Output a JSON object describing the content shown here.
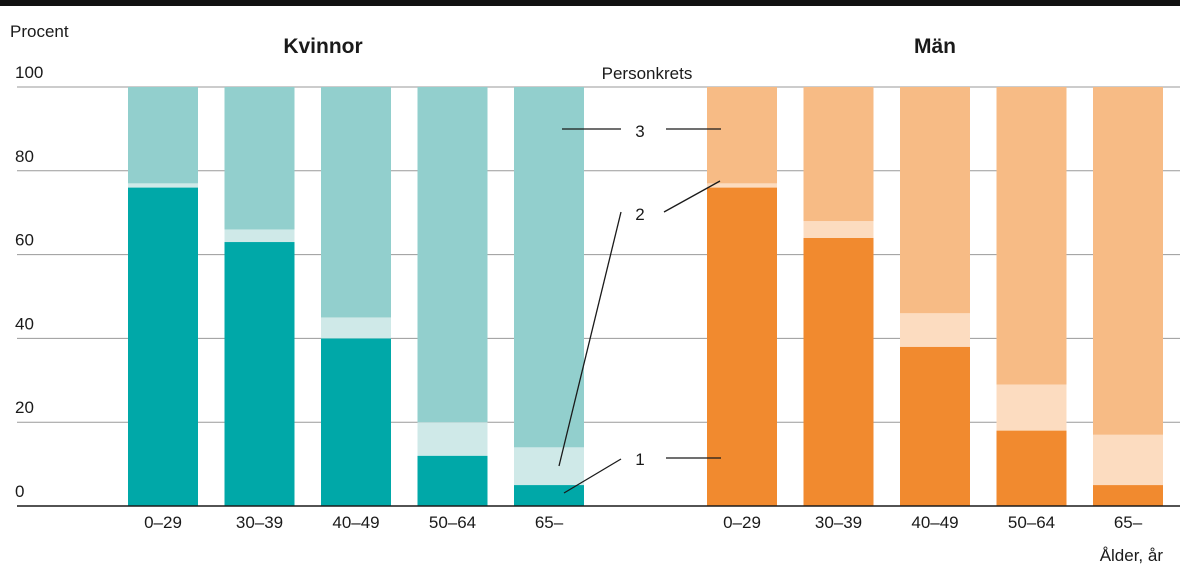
{
  "chart_data": {
    "type": "bar",
    "stacked": true,
    "y_axis_label": "Procent",
    "x_axis_label": "Ålder, år",
    "ylim": [
      0,
      100
    ],
    "yticks": [
      0,
      20,
      40,
      60,
      80,
      100
    ],
    "grid": true,
    "legend_title": "Personkrets",
    "legend_labels": [
      "1",
      "2",
      "3"
    ],
    "groups": [
      {
        "name": "Kvinnor",
        "color": "#16a9a8",
        "categories": [
          "0–29",
          "30–39",
          "40–49",
          "50–64",
          "65–"
        ],
        "series": [
          {
            "name": "1",
            "color": "#00a8a8",
            "values": [
              76,
              63,
              40,
              12,
              5
            ]
          },
          {
            "name": "2",
            "color": "#cfe9e8",
            "values": [
              1,
              3,
              5,
              8,
              9
            ]
          },
          {
            "name": "3",
            "color": "#92cfcd",
            "values": [
              23,
              34,
              55,
              80,
              86
            ]
          }
        ]
      },
      {
        "name": "Män",
        "color": "#f28b2f",
        "categories": [
          "0–29",
          "30–39",
          "40–49",
          "50–64",
          "65–"
        ],
        "series": [
          {
            "name": "1",
            "color": "#f18a2f",
            "values": [
              76,
              64,
              38,
              18,
              5
            ]
          },
          {
            "name": "2",
            "color": "#fcdcc0",
            "values": [
              1,
              4,
              8,
              11,
              12
            ]
          },
          {
            "name": "3",
            "color": "#f7bb85",
            "values": [
              23,
              32,
              54,
              71,
              83
            ]
          }
        ]
      }
    ]
  }
}
